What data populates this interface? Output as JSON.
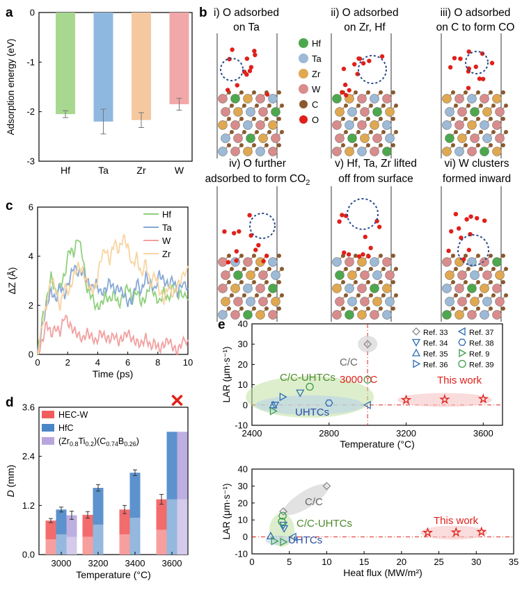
{
  "figure": {
    "panel_letters": [
      "a",
      "b",
      "c",
      "d",
      "e"
    ],
    "b": {
      "captions": [
        {
          "l1": "i) O adsorbed",
          "l2": "on Ta"
        },
        {
          "l1": "ii) O adsorbed",
          "l2": "on Zr, Hf"
        },
        {
          "l1": "iii) O adsorbed",
          "l2": "on C to form CO"
        },
        {
          "l1": "iv) O further",
          "l2": "adsorbed to form CO",
          "sub": "2"
        },
        {
          "l1": "v) Hf, Ta, Zr lifted",
          "l2": "off from surface"
        },
        {
          "l1": "vi) W clusters",
          "l2": "formed inward"
        }
      ],
      "legend": [
        {
          "label": "Hf",
          "color": "#4da84d"
        },
        {
          "label": "Ta",
          "color": "#9dbad6"
        },
        {
          "label": "Zr",
          "color": "#e0a850"
        },
        {
          "label": "W",
          "color": "#d98c8c"
        },
        {
          "label": "C",
          "color": "#8a5a2e"
        },
        {
          "label": "O",
          "color": "#e0201a"
        }
      ]
    },
    "e_labels": {
      "cc": "C/C",
      "temp3000": "3000 °C",
      "ccuhtcs": "C/C-UHTCs",
      "uhtcs": "UHTCs",
      "thiswork": "This work"
    },
    "d_legend": [
      "HEC-W",
      "HfC"
    ],
    "d_legend3": {
      "a": "(Zr",
      "s1": "0.8",
      "b": "Ti",
      "s2": "0.2",
      "c": ")(C",
      "s3": "0.74",
      "d": "B",
      "s4": "0.26",
      "e": ")"
    },
    "e_legend": [
      "Ref. 33",
      "Ref. 34",
      "Ref. 35",
      "Ref. 36",
      "Ref. 37",
      "Ref. 38",
      "Ref. 9",
      "Ref. 39"
    ]
  },
  "chart_data": [
    {
      "id": "a",
      "type": "bar",
      "categories": [
        "Hf",
        "Ta",
        "Zr",
        "W"
      ],
      "values": [
        -2.05,
        -2.2,
        -2.17,
        -1.85
      ],
      "errors": [
        0.07,
        0.25,
        0.15,
        0.12
      ],
      "colors": [
        "#a8d890",
        "#8fb8e0",
        "#f6c8a0",
        "#f2a8a8"
      ],
      "ylabel": "Adsorption energy (eV)",
      "ylim": [
        -3,
        0
      ],
      "yticks": [
        0,
        -1,
        -2,
        -3
      ]
    },
    {
      "id": "c",
      "type": "line",
      "xlabel": "Time (ps)",
      "ylabel": "ΔZ (Å)",
      "xlim": [
        0,
        10
      ],
      "ylim": [
        0,
        6
      ],
      "xticks": [
        0,
        2,
        4,
        6,
        8,
        10
      ],
      "yticks": [
        0,
        2,
        4,
        6
      ],
      "series": [
        {
          "name": "Hf",
          "color": "#8fd07c",
          "x": [
            0,
            0.3,
            0.6,
            0.9,
            1.2,
            1.5,
            1.8,
            2.1,
            2.4,
            2.7,
            3.0,
            3.3,
            3.6,
            3.9,
            4.2,
            4.5,
            4.8,
            5.1,
            5.4,
            5.7,
            6.0,
            6.3,
            6.6,
            6.9,
            7.2,
            7.5,
            7.8,
            8.1,
            8.4,
            8.7,
            9.0,
            9.3,
            9.6,
            10
          ],
          "y": [
            0,
            1.4,
            2.2,
            3.2,
            2.5,
            2.8,
            3.2,
            4.3,
            4.1,
            4.8,
            4.0,
            2.6,
            2.4,
            1.9,
            2.0,
            2.4,
            2.2,
            2.5,
            2.0,
            2.4,
            2.8,
            2.2,
            2.6,
            2.1,
            2.3,
            2.9,
            2.4,
            2.1,
            2.6,
            2.2,
            2.8,
            2.4,
            2.5,
            2.2
          ]
        },
        {
          "name": "Ta",
          "color": "#86a8d4",
          "x": [
            0,
            0.3,
            0.6,
            0.9,
            1.2,
            1.5,
            1.8,
            2.1,
            2.4,
            2.7,
            3.0,
            3.3,
            3.6,
            3.9,
            4.2,
            4.5,
            4.8,
            5.1,
            5.4,
            5.7,
            6.0,
            6.3,
            6.6,
            6.9,
            7.2,
            7.5,
            7.8,
            8.1,
            8.4,
            8.7,
            9.0,
            9.3,
            9.6,
            10
          ],
          "y": [
            0,
            1.1,
            2.0,
            2.6,
            2.2,
            2.8,
            2.4,
            3.0,
            3.6,
            3.3,
            3.4,
            3.0,
            2.7,
            2.9,
            2.5,
            2.6,
            3.0,
            2.6,
            2.7,
            2.5,
            2.1,
            2.2,
            3.0,
            2.5,
            3.2,
            2.9,
            2.6,
            3.3,
            3.0,
            2.8,
            3.1,
            2.5,
            2.9,
            2.7
          ]
        },
        {
          "name": "W",
          "color": "#f2a0a0",
          "x": [
            0,
            0.3,
            0.6,
            0.9,
            1.2,
            1.5,
            1.8,
            2.1,
            2.4,
            2.7,
            3.0,
            3.3,
            3.6,
            3.9,
            4.2,
            4.5,
            4.8,
            5.1,
            5.4,
            5.7,
            6.0,
            6.3,
            6.6,
            6.9,
            7.2,
            7.5,
            7.8,
            8.1,
            8.4,
            8.7,
            9.0,
            9.3,
            9.6,
            10
          ],
          "y": [
            0,
            0.5,
            1.3,
            0.8,
            1.1,
            0.9,
            1.6,
            1.2,
            1.0,
            0.8,
            0.6,
            0.9,
            0.7,
            0.5,
            0.9,
            0.7,
            0.6,
            0.8,
            0.5,
            0.7,
            0.9,
            0.6,
            0.5,
            0.4,
            0.7,
            0.3,
            0.5,
            0.2,
            0.4,
            0.6,
            0.3,
            0.1,
            0.5,
            0.6
          ]
        },
        {
          "name": "Zr",
          "color": "#f8d4a0",
          "x": [
            0,
            0.3,
            0.6,
            0.9,
            1.2,
            1.5,
            1.8,
            2.1,
            2.4,
            2.7,
            3.0,
            3.3,
            3.6,
            3.9,
            4.2,
            4.5,
            4.8,
            5.1,
            5.4,
            5.7,
            6.0,
            6.3,
            6.6,
            6.9,
            7.2,
            7.5,
            7.8,
            8.1,
            8.4,
            8.7,
            9.0,
            9.3,
            9.6,
            10
          ],
          "y": [
            0,
            1.2,
            2.0,
            3.1,
            2.7,
            1.9,
            2.8,
            2.5,
            3.2,
            3.6,
            3.4,
            2.9,
            2.6,
            2.8,
            3.9,
            4.3,
            3.8,
            4.6,
            4.2,
            4.8,
            4.4,
            3.6,
            4.0,
            3.2,
            3.8,
            2.8,
            3.3,
            2.6,
            2.2,
            2.8,
            2.4,
            2.8,
            3.1,
            3.6
          ]
        }
      ]
    },
    {
      "id": "d",
      "type": "bar",
      "xlabel": "Temperature (°C)",
      "ylabel": "D (mm)",
      "ylim": [
        0,
        3.6
      ],
      "yticks": [
        0.0,
        1.2,
        2.4,
        3.6
      ],
      "categories": [
        "3000",
        "3200",
        "3400",
        "3600"
      ],
      "series": [
        {
          "name": "HEC-W",
          "values": [
            0.83,
            0.97,
            1.1,
            1.35
          ],
          "errors": [
            0.05,
            0.08,
            0.1,
            0.12
          ],
          "color": "#f25c5c"
        },
        {
          "name": "HfC",
          "values": [
            1.1,
            1.63,
            2.0,
            3.0
          ],
          "errors": [
            0.06,
            0.08,
            0.07,
            0
          ],
          "color": "#4a86c8"
        },
        {
          "name": "(Zr0.8Ti0.2)(C0.74B0.26)",
          "values": [
            0.96,
            null,
            null,
            3.0
          ],
          "errors": [
            0.1,
            0,
            0,
            0
          ],
          "color": "#b7a6de"
        }
      ],
      "annotation": "failure mark at 3600 °C"
    },
    {
      "id": "e-top",
      "type": "scatter",
      "xlabel": "Temperature (°C)",
      "ylabel": "LAR (μm·s⁻¹)",
      "xlim": [
        2400,
        3700
      ],
      "ylim": [
        -10,
        40
      ],
      "xticks": [
        2400,
        2800,
        3200,
        3600
      ],
      "yticks": [
        -10,
        0,
        10,
        20,
        30,
        40
      ],
      "reference_lines": {
        "y": 0,
        "x": 3000
      },
      "series": [
        {
          "name": "Ref. 33",
          "marker": "diamond",
          "x": [
            3000
          ],
          "y": [
            30
          ]
        },
        {
          "name": "Ref. 34",
          "marker": "tri-down",
          "x": [
            2520,
            2650
          ],
          "y": [
            0,
            6
          ]
        },
        {
          "name": "Ref. 35",
          "marker": "tri-up",
          "x": [
            2510
          ],
          "y": [
            0
          ]
        },
        {
          "name": "Ref. 36",
          "marker": "tri-right",
          "x": [
            2560
          ],
          "y": [
            4
          ]
        },
        {
          "name": "Ref. 37",
          "marker": "tri-left",
          "x": [
            3000
          ],
          "y": [
            0
          ]
        },
        {
          "name": "Ref. 38",
          "marker": "hexagon",
          "x": [
            2800
          ],
          "y": [
            1
          ]
        },
        {
          "name": "Ref. 9",
          "marker": "tri-right",
          "x": [
            2510
          ],
          "y": [
            -3
          ]
        },
        {
          "name": "Ref. 39",
          "marker": "circle",
          "x": [
            2700,
            3000
          ],
          "y": [
            9,
            12.5
          ]
        },
        {
          "name": "This work",
          "marker": "star",
          "x": [
            3200,
            3400,
            3600
          ],
          "y": [
            2.5,
            2.7,
            3
          ]
        }
      ]
    },
    {
      "id": "e-bottom",
      "type": "scatter",
      "xlabel": "Heat flux (MW/m²)",
      "ylabel": "LAR (μm·s⁻¹)",
      "xlim": [
        0,
        35
      ],
      "ylim": [
        -10,
        40
      ],
      "xticks": [
        0,
        5,
        10,
        15,
        20,
        25,
        30,
        35
      ],
      "yticks": [
        -10,
        0,
        10,
        20,
        30,
        40
      ],
      "reference_lines": {
        "y": 0
      },
      "series": [
        {
          "name": "Ref. 33",
          "marker": "diamond",
          "x": [
            4.2,
            10
          ],
          "y": [
            15,
            30
          ]
        },
        {
          "name": "Ref. 34",
          "marker": "tri-down",
          "x": [
            4.3,
            4.2
          ],
          "y": [
            5,
            7
          ]
        },
        {
          "name": "Ref. 35",
          "marker": "tri-up",
          "x": [
            2.5
          ],
          "y": [
            0.5
          ]
        },
        {
          "name": "Ref. 9",
          "marker": "tri-right",
          "x": [
            3,
            4.2
          ],
          "y": [
            -2.5,
            -3
          ]
        },
        {
          "name": "Ref. 39",
          "marker": "circle",
          "x": [
            4,
            4.1
          ],
          "y": [
            9,
            12.5
          ]
        },
        {
          "name": "Ref. 37",
          "marker": "tri-left",
          "x": [
            5.5
          ],
          "y": [
            0
          ]
        },
        {
          "name": "This work",
          "marker": "star",
          "x": [
            23.5,
            27.3,
            30.7
          ],
          "y": [
            2.5,
            2.7,
            3
          ]
        }
      ]
    }
  ]
}
